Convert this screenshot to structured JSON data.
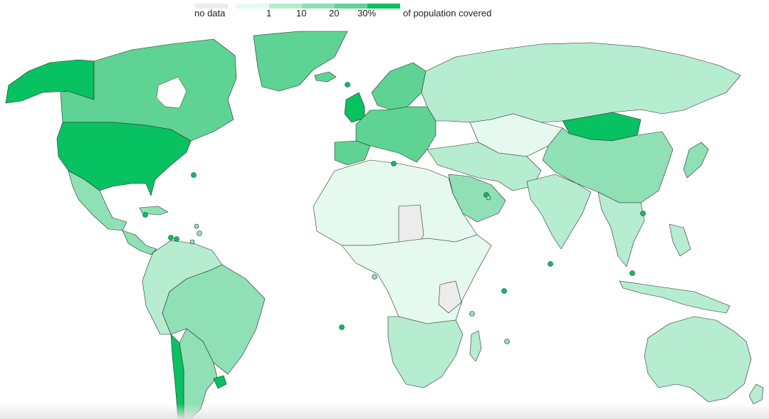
{
  "legend": {
    "no_data_label": "no data",
    "unit_label": "of population covered",
    "ticks": [
      "1",
      "10",
      "20",
      "30%"
    ],
    "colors": {
      "no_data": "#ececec",
      "bin_0": "#e6f9ef",
      "bin_1": "#b6ecd0",
      "bin_2": "#8fe0b5",
      "bin_3": "#5ed393",
      "bin_4": "#08c160"
    }
  },
  "regions": [
    {
      "name": "canada",
      "bin": 3
    },
    {
      "name": "alaska",
      "bin": 4
    },
    {
      "name": "united-states",
      "bin": 4
    },
    {
      "name": "mexico",
      "bin": 2
    },
    {
      "name": "central-america",
      "bin": 2
    },
    {
      "name": "greenland",
      "bin": 3
    },
    {
      "name": "iceland",
      "bin": 3
    },
    {
      "name": "south-america-north",
      "bin": 1
    },
    {
      "name": "brazil",
      "bin": 2
    },
    {
      "name": "argentina",
      "bin": 2
    },
    {
      "name": "chile",
      "bin": 4
    },
    {
      "name": "uruguay",
      "bin": 4
    },
    {
      "name": "united-kingdom",
      "bin": 4
    },
    {
      "name": "europe-west",
      "bin": 3
    },
    {
      "name": "iberia",
      "bin": 3
    },
    {
      "name": "scandinavia",
      "bin": 3
    },
    {
      "name": "russia",
      "bin": 1
    },
    {
      "name": "kazakhstan-central-asia",
      "bin": 0
    },
    {
      "name": "mongolia",
      "bin": 4
    },
    {
      "name": "china",
      "bin": 2
    },
    {
      "name": "middle-east",
      "bin": 1
    },
    {
      "name": "saudi-arabia",
      "bin": 2
    },
    {
      "name": "india",
      "bin": 1
    },
    {
      "name": "southeast-asia",
      "bin": 1
    },
    {
      "name": "japan",
      "bin": 2
    },
    {
      "name": "north-africa",
      "bin": 0
    },
    {
      "name": "africa-central",
      "bin": 0
    },
    {
      "name": "southern-africa",
      "bin": 1
    },
    {
      "name": "australia",
      "bin": 1
    },
    {
      "name": "indonesia",
      "bin": 1
    },
    {
      "name": "new-zealand",
      "bin": 1
    }
  ]
}
